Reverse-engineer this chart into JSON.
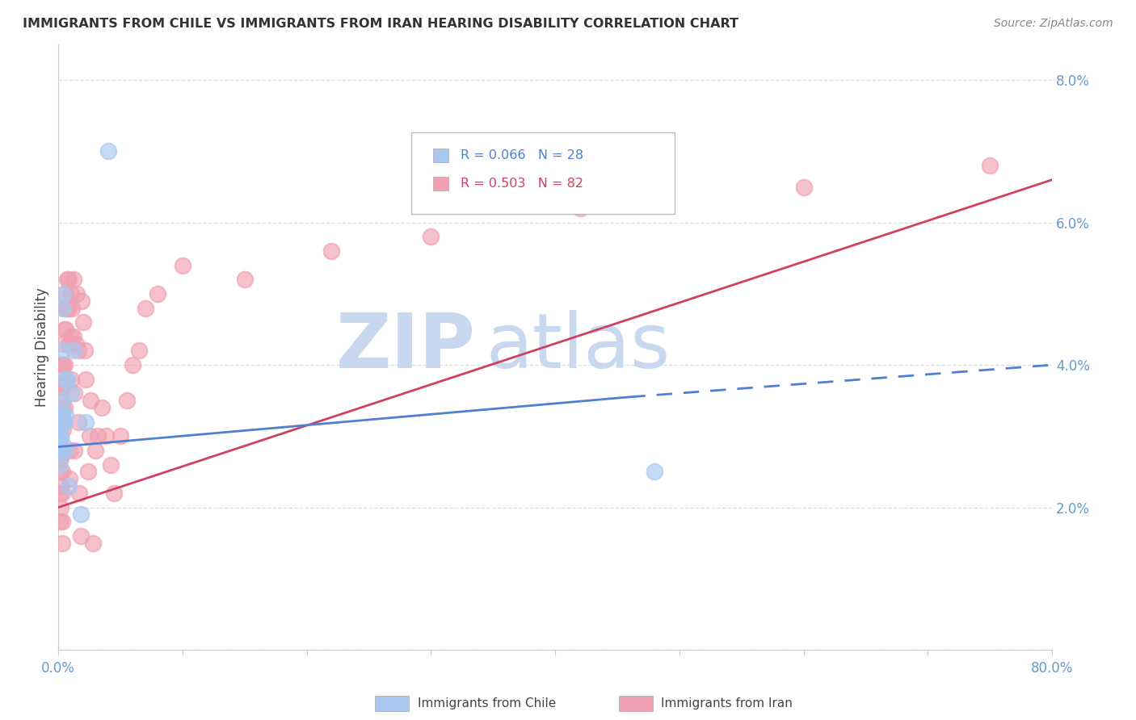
{
  "title": "IMMIGRANTS FROM CHILE VS IMMIGRANTS FROM IRAN HEARING DISABILITY CORRELATION CHART",
  "source": "Source: ZipAtlas.com",
  "ylabel": "Hearing Disability",
  "xlim": [
    0.0,
    0.8
  ],
  "ylim": [
    0.0,
    0.085
  ],
  "x_ticks": [
    0.0,
    0.1,
    0.2,
    0.3,
    0.4,
    0.5,
    0.6,
    0.7,
    0.8
  ],
  "x_tick_labels": [
    "0.0%",
    "",
    "",
    "",
    "",
    "",
    "",
    "",
    "80.0%"
  ],
  "y_ticks": [
    0.0,
    0.02,
    0.04,
    0.06,
    0.08
  ],
  "y_tick_labels": [
    "",
    "2.0%",
    "4.0%",
    "6.0%",
    "8.0%"
  ],
  "legend_r1": "R = 0.066",
  "legend_n1": "N = 28",
  "legend_r2": "R = 0.503",
  "legend_n2": "N = 82",
  "color_chile": "#A8C8F0",
  "color_iran": "#F0A0B0",
  "color_trendline_chile": "#5080D0",
  "color_trendline_iran": "#D04060",
  "color_tick": "#6699CC",
  "color_watermark": "#C8D8EE",
  "watermark_text": "ZIPatlas",
  "chile_x": [
    0.0005,
    0.0008,
    0.001,
    0.001,
    0.001,
    0.0015,
    0.002,
    0.002,
    0.002,
    0.003,
    0.003,
    0.003,
    0.003,
    0.004,
    0.004,
    0.004,
    0.005,
    0.005,
    0.006,
    0.006,
    0.007,
    0.008,
    0.01,
    0.012,
    0.018,
    0.022,
    0.04,
    0.48
  ],
  "chile_y": [
    0.0285,
    0.031,
    0.03,
    0.028,
    0.026,
    0.033,
    0.032,
    0.03,
    0.028,
    0.035,
    0.033,
    0.032,
    0.029,
    0.05,
    0.048,
    0.042,
    0.038,
    0.032,
    0.033,
    0.028,
    0.038,
    0.023,
    0.036,
    0.042,
    0.019,
    0.032,
    0.07,
    0.025
  ],
  "iran_x": [
    0.0005,
    0.001,
    0.001,
    0.001,
    0.001,
    0.001,
    0.001,
    0.001,
    0.002,
    0.002,
    0.002,
    0.002,
    0.002,
    0.002,
    0.002,
    0.003,
    0.003,
    0.003,
    0.003,
    0.003,
    0.003,
    0.003,
    0.003,
    0.004,
    0.004,
    0.004,
    0.004,
    0.005,
    0.005,
    0.005,
    0.005,
    0.006,
    0.006,
    0.006,
    0.007,
    0.007,
    0.008,
    0.008,
    0.008,
    0.009,
    0.009,
    0.01,
    0.01,
    0.01,
    0.011,
    0.012,
    0.012,
    0.013,
    0.013,
    0.014,
    0.015,
    0.016,
    0.016,
    0.017,
    0.018,
    0.019,
    0.02,
    0.021,
    0.022,
    0.024,
    0.025,
    0.026,
    0.028,
    0.03,
    0.032,
    0.035,
    0.038,
    0.042,
    0.045,
    0.05,
    0.055,
    0.06,
    0.065,
    0.07,
    0.08,
    0.1,
    0.15,
    0.22,
    0.3,
    0.42,
    0.6,
    0.75
  ],
  "iran_y": [
    0.029,
    0.031,
    0.027,
    0.025,
    0.022,
    0.03,
    0.028,
    0.018,
    0.036,
    0.033,
    0.03,
    0.027,
    0.023,
    0.032,
    0.02,
    0.04,
    0.037,
    0.034,
    0.028,
    0.025,
    0.022,
    0.018,
    0.015,
    0.043,
    0.04,
    0.037,
    0.031,
    0.048,
    0.045,
    0.04,
    0.034,
    0.05,
    0.045,
    0.038,
    0.052,
    0.048,
    0.052,
    0.048,
    0.043,
    0.028,
    0.024,
    0.05,
    0.044,
    0.038,
    0.048,
    0.052,
    0.044,
    0.036,
    0.028,
    0.043,
    0.05,
    0.042,
    0.032,
    0.022,
    0.016,
    0.049,
    0.046,
    0.042,
    0.038,
    0.025,
    0.03,
    0.035,
    0.015,
    0.028,
    0.03,
    0.034,
    0.03,
    0.026,
    0.022,
    0.03,
    0.035,
    0.04,
    0.042,
    0.048,
    0.05,
    0.054,
    0.052,
    0.056,
    0.058,
    0.062,
    0.065,
    0.068
  ],
  "chile_trendline_start_x": 0.0,
  "chile_trendline_start_y": 0.0285,
  "chile_trendline_solid_end_x": 0.46,
  "chile_trendline_solid_end_y": 0.0355,
  "chile_trendline_dash_end_x": 0.8,
  "chile_trendline_dash_end_y": 0.04,
  "iran_trendline_start_x": 0.0,
  "iran_trendline_start_y": 0.02,
  "iran_trendline_end_x": 0.8,
  "iran_trendline_end_y": 0.066
}
